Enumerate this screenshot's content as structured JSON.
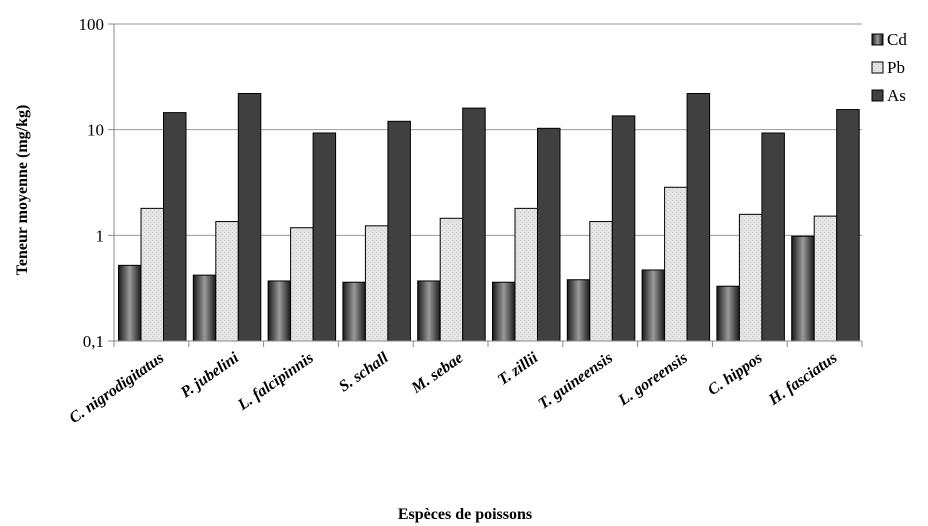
{
  "chart_data": {
    "type": "bar",
    "title": "",
    "xlabel": "Espèces de poissons",
    "ylabel": "Teneur moyenne (mg/kg)",
    "yscale": "log",
    "ylim": [
      0.1,
      100
    ],
    "yticks": [
      {
        "value": 0.1,
        "label": "0,1"
      },
      {
        "value": 1,
        "label": "1"
      },
      {
        "value": 10,
        "label": "10"
      },
      {
        "value": 100,
        "label": "100"
      }
    ],
    "grid": "horizontal",
    "legend_position": "right-top",
    "categories": [
      "C. nigrodigitatus",
      "P. jubelini",
      "L. falcipinnis",
      "S. schall",
      "M. sebae",
      "T. zillii",
      "T. guineensis",
      "L. goreensis",
      "C. hippos",
      "H. fasciatus"
    ],
    "series": [
      {
        "name": "Cd",
        "values": [
          0.52,
          0.42,
          0.37,
          0.36,
          0.37,
          0.36,
          0.38,
          0.47,
          0.33,
          0.98
        ]
      },
      {
        "name": "Pb",
        "values": [
          1.8,
          1.35,
          1.18,
          1.23,
          1.45,
          1.8,
          1.35,
          2.85,
          1.58,
          1.52
        ]
      },
      {
        "name": "As",
        "values": [
          14.5,
          22,
          9.3,
          12,
          16,
          10.3,
          13.5,
          22,
          9.3,
          15.5
        ]
      }
    ]
  }
}
